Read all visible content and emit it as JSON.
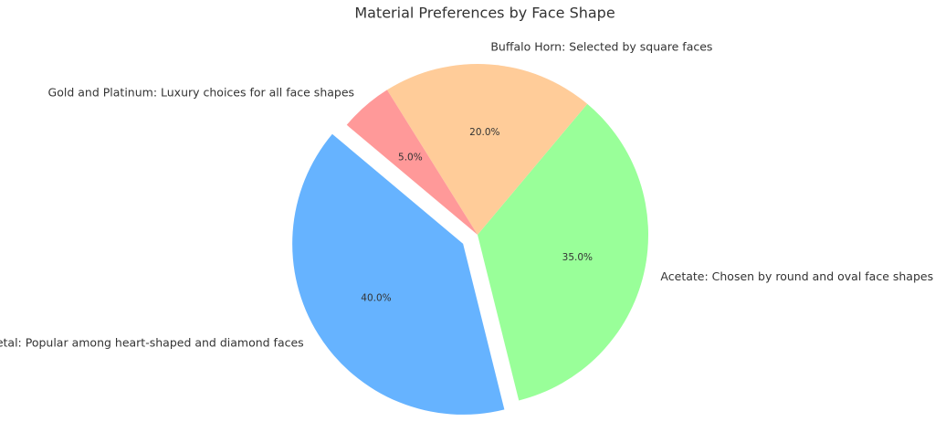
{
  "chart_data": {
    "type": "pie",
    "title": "Material Preferences by Face Shape",
    "labels": [
      "Metal: Popular among heart-shaped and diamond faces",
      "Acetate: Chosen by round and oval face shapes",
      "Buffalo Horn: Selected by square faces",
      "Gold and Platinum: Luxury choices for all face shapes"
    ],
    "values": [
      40,
      35,
      20,
      5
    ],
    "value_labels": [
      "40.0%",
      "35.0%",
      "20.0%",
      "5.0%"
    ],
    "colors": [
      "#66b3ff",
      "#99ff99",
      "#ffcc99",
      "#ff9999"
    ],
    "explode": [
      0.1,
      0,
      0,
      0
    ],
    "startangle": 140
  }
}
